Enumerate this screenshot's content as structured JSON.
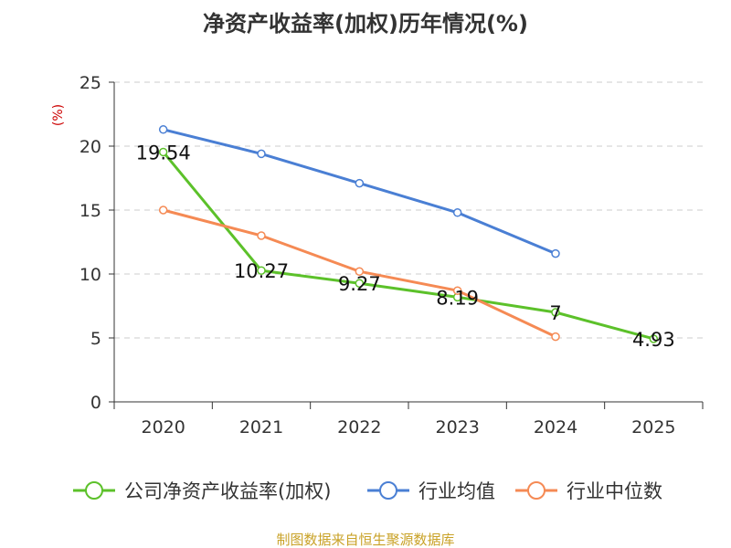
{
  "chart_data": {
    "type": "line",
    "title": "净资产收益率(加权)历年情况(%)",
    "unit_label": "(%)",
    "x": [
      "2020",
      "2021",
      "2022",
      "2023",
      "2024",
      "2025"
    ],
    "ylim": [
      0,
      25
    ],
    "yticks": [
      "0",
      "5",
      "10",
      "15",
      "20",
      "25"
    ],
    "grid": true,
    "legend_position": "bottom",
    "series": [
      {
        "name": "公司净资产收益率(加权)",
        "color": "#5cc12a",
        "values": [
          19.54,
          10.27,
          9.27,
          8.19,
          7,
          4.93
        ],
        "labels": [
          "19.54",
          "10.27",
          "9.27",
          "8.19",
          "7",
          "4.93"
        ]
      },
      {
        "name": "行业均值",
        "color": "#4a7fd4",
        "values": [
          21.3,
          19.4,
          17.1,
          14.8,
          11.6,
          null
        ]
      },
      {
        "name": "行业中位数",
        "color": "#f58a54",
        "values": [
          15.0,
          13.0,
          10.2,
          8.7,
          5.1,
          null
        ]
      }
    ],
    "source": "制图数据来自恒生聚源数据库",
    "colors": {
      "unit": "#cc0000",
      "source": "#c9a227",
      "grid": "#cccccc",
      "axis": "#333333"
    }
  }
}
